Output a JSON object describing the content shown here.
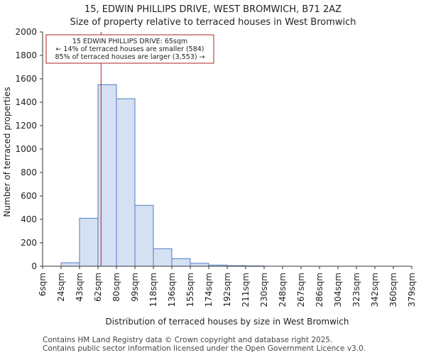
{
  "header": {
    "title_line1": "15, EDWIN PHILLIPS DRIVE, WEST BROMWICH, B71 2AZ",
    "title_line2": "Size of property relative to terraced houses in West Bromwich"
  },
  "footer": {
    "line1": "Contains HM Land Registry data © Crown copyright and database right 2025.",
    "line2": "Contains public sector information licensed under the Open Government Licence v3.0."
  },
  "chart_data": {
    "type": "bar",
    "title": "Size of property relative to terraced houses in West Bromwich",
    "xlabel": "Distribution of terraced houses by size in West Bromwich",
    "ylabel": "Number of terraced properties",
    "ylim": [
      0,
      2000
    ],
    "y_ticks": [
      0,
      200,
      400,
      600,
      800,
      1000,
      1200,
      1400,
      1600,
      1800,
      2000
    ],
    "bin_edges": [
      6,
      24,
      43,
      62,
      80,
      99,
      118,
      136,
      155,
      174,
      192,
      211,
      230,
      248,
      267,
      286,
      304,
      323,
      342,
      360,
      379
    ],
    "x_tick_labels": [
      "6sqm",
      "24sqm",
      "43sqm",
      "62sqm",
      "80sqm",
      "99sqm",
      "118sqm",
      "136sqm",
      "155sqm",
      "174sqm",
      "192sqm",
      "211sqm",
      "230sqm",
      "248sqm",
      "267sqm",
      "286sqm",
      "304sqm",
      "323sqm",
      "342sqm",
      "360sqm",
      "379sqm"
    ],
    "values": [
      0,
      30,
      410,
      1550,
      1430,
      520,
      150,
      65,
      25,
      10,
      5,
      3,
      0,
      0,
      0,
      0,
      0,
      0,
      0,
      0
    ],
    "marker": {
      "value": 65,
      "label_lines": [
        "15 EDWIN PHILLIPS DRIVE: 65sqm",
        "← 14% of terraced houses are smaller (584)",
        "85% of terraced houses are larger (3,553) →"
      ]
    },
    "colors": {
      "bar_fill": "#d6e0f3",
      "bar_stroke": "#4f7dc3",
      "marker": "#b22222",
      "axis": "#333333"
    }
  }
}
